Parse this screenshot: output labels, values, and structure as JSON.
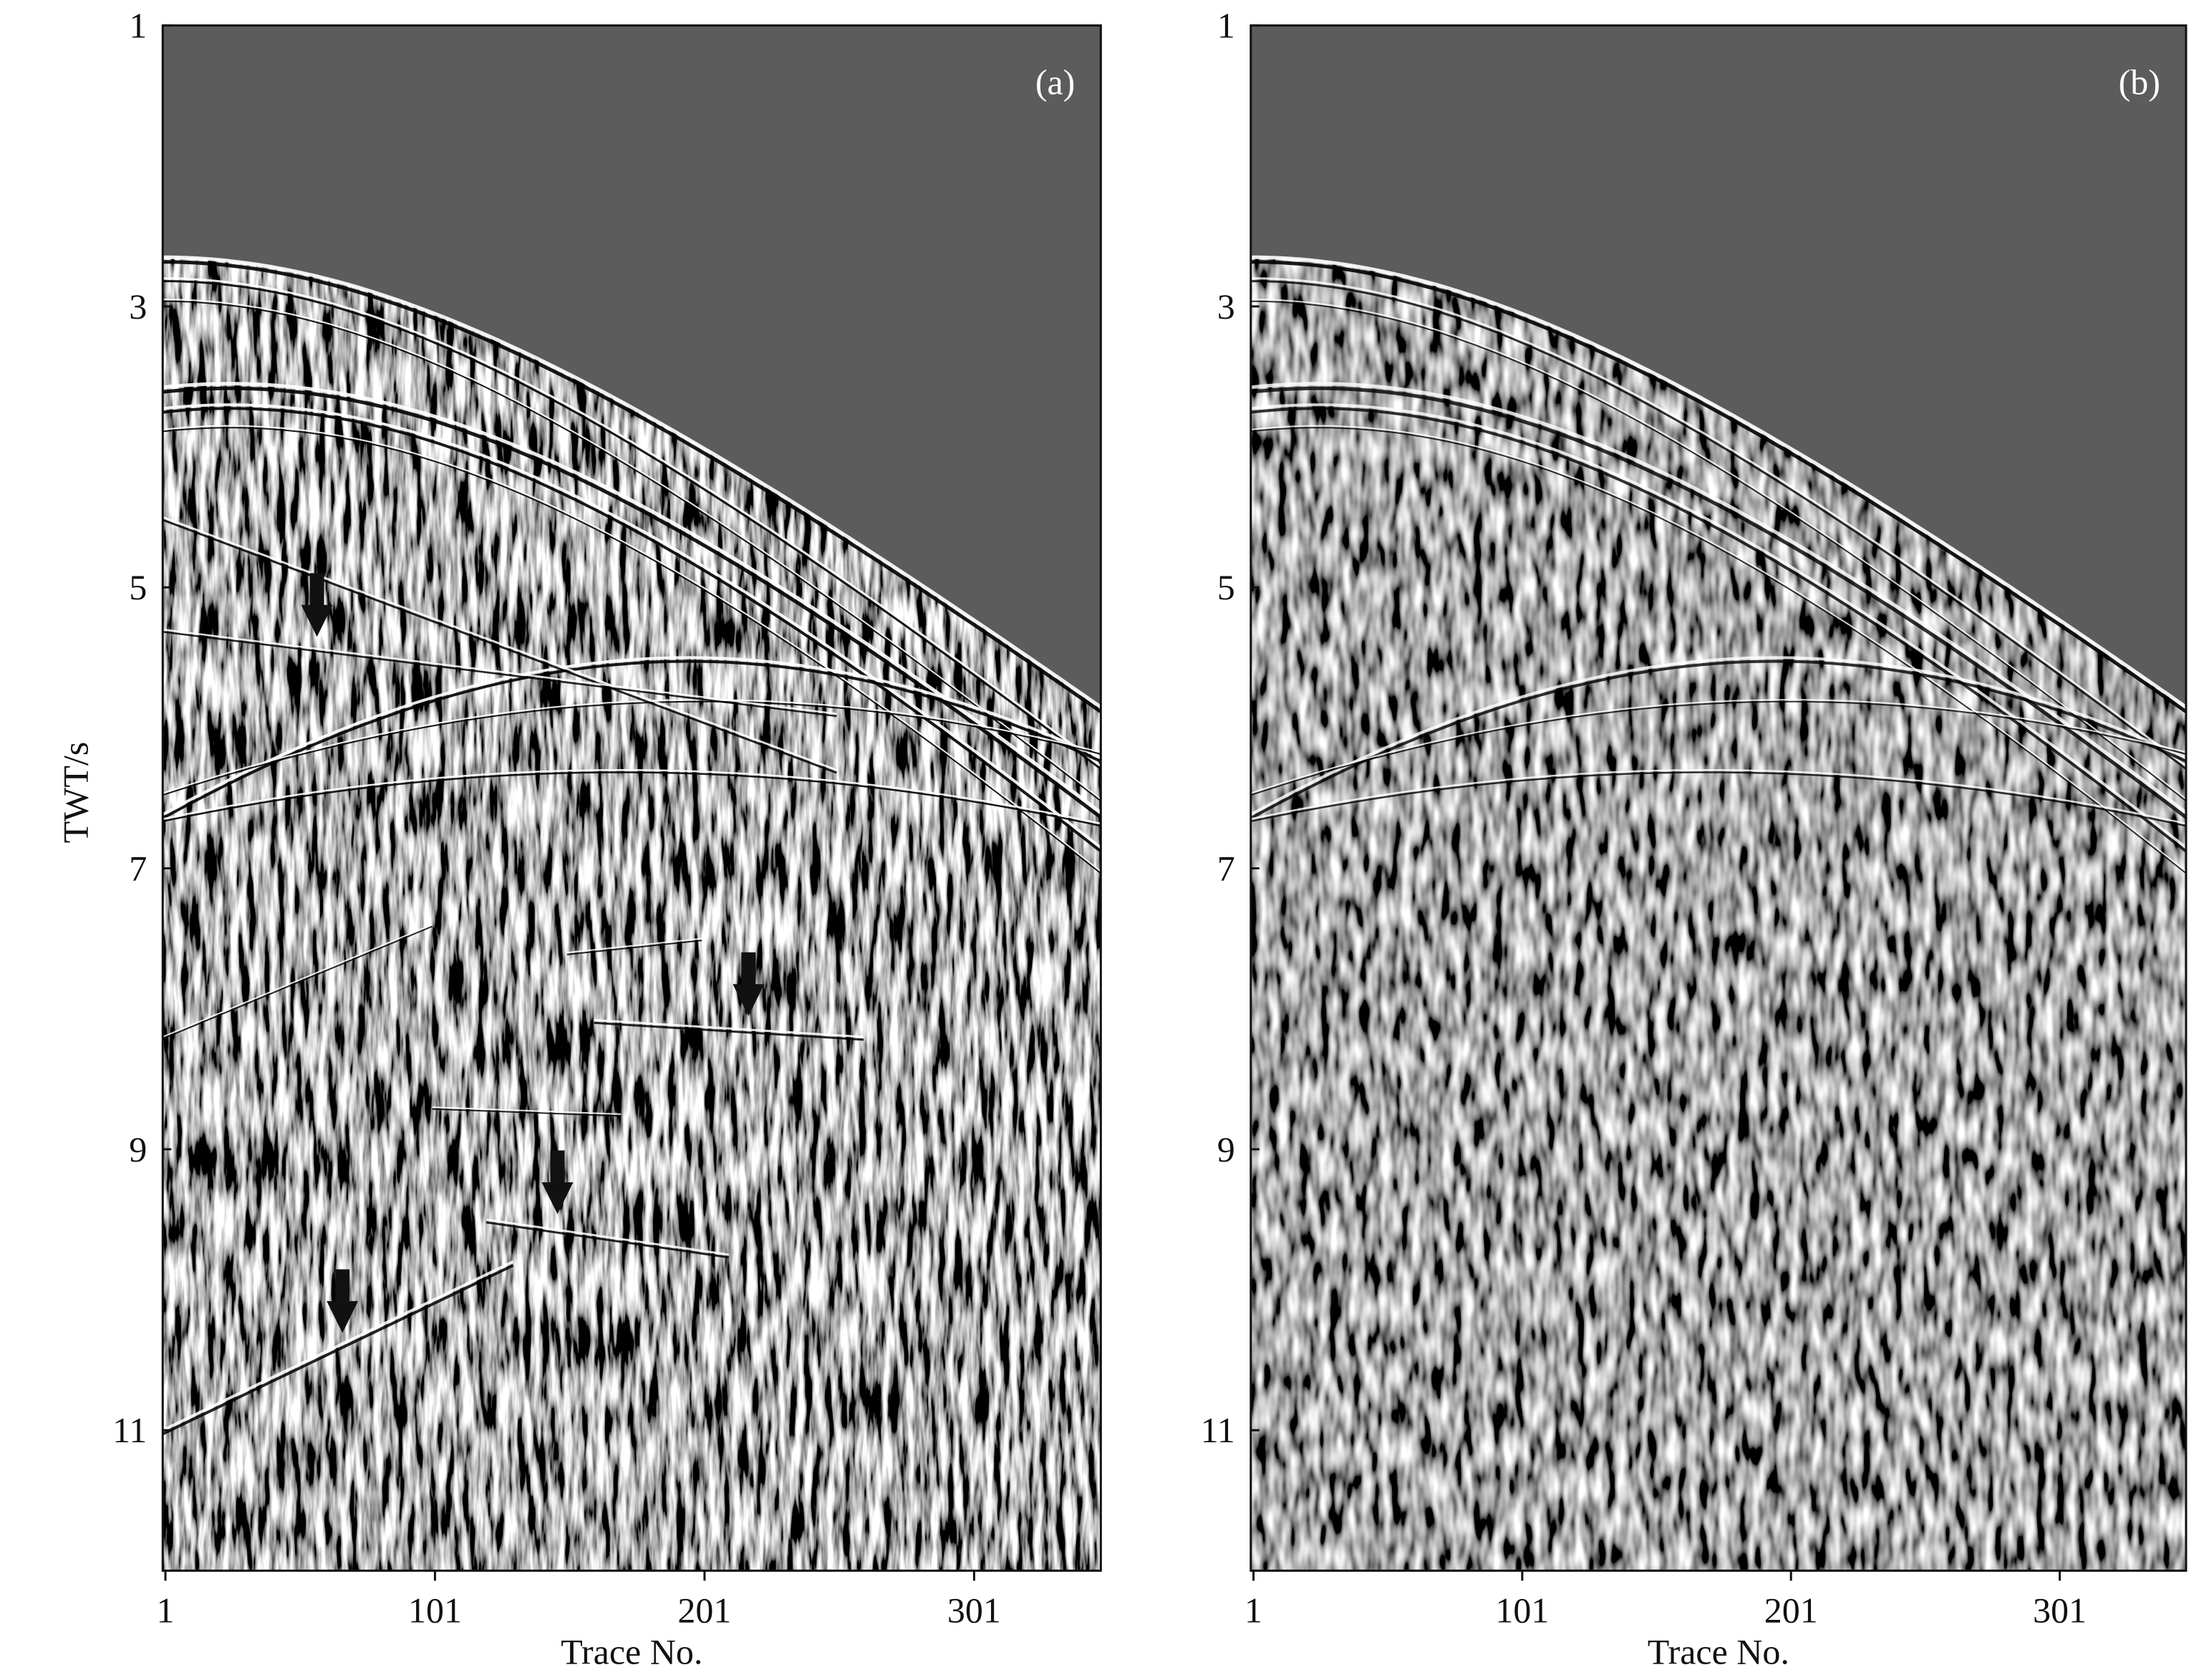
{
  "chart_data": [
    {
      "type": "image",
      "panel_label": "(a)",
      "xlabel": "Trace No.",
      "ylabel": "TWT/s",
      "xlim": [
        0,
        348
      ],
      "ylim": [
        1,
        12
      ],
      "y_inverted": true,
      "xticks": [
        1,
        101,
        201,
        301
      ],
      "yticks": [
        1,
        3,
        5,
        7,
        9,
        11
      ],
      "arrows": true
    },
    {
      "type": "image",
      "panel_label": "(b)",
      "xlabel": "Trace No.",
      "xlim": [
        0,
        348
      ],
      "ylim": [
        1,
        12
      ],
      "y_inverted": true,
      "xticks": [
        1,
        101,
        201,
        301
      ],
      "yticks": [
        1,
        3,
        5,
        7,
        9,
        11
      ],
      "arrows": false
    }
  ]
}
